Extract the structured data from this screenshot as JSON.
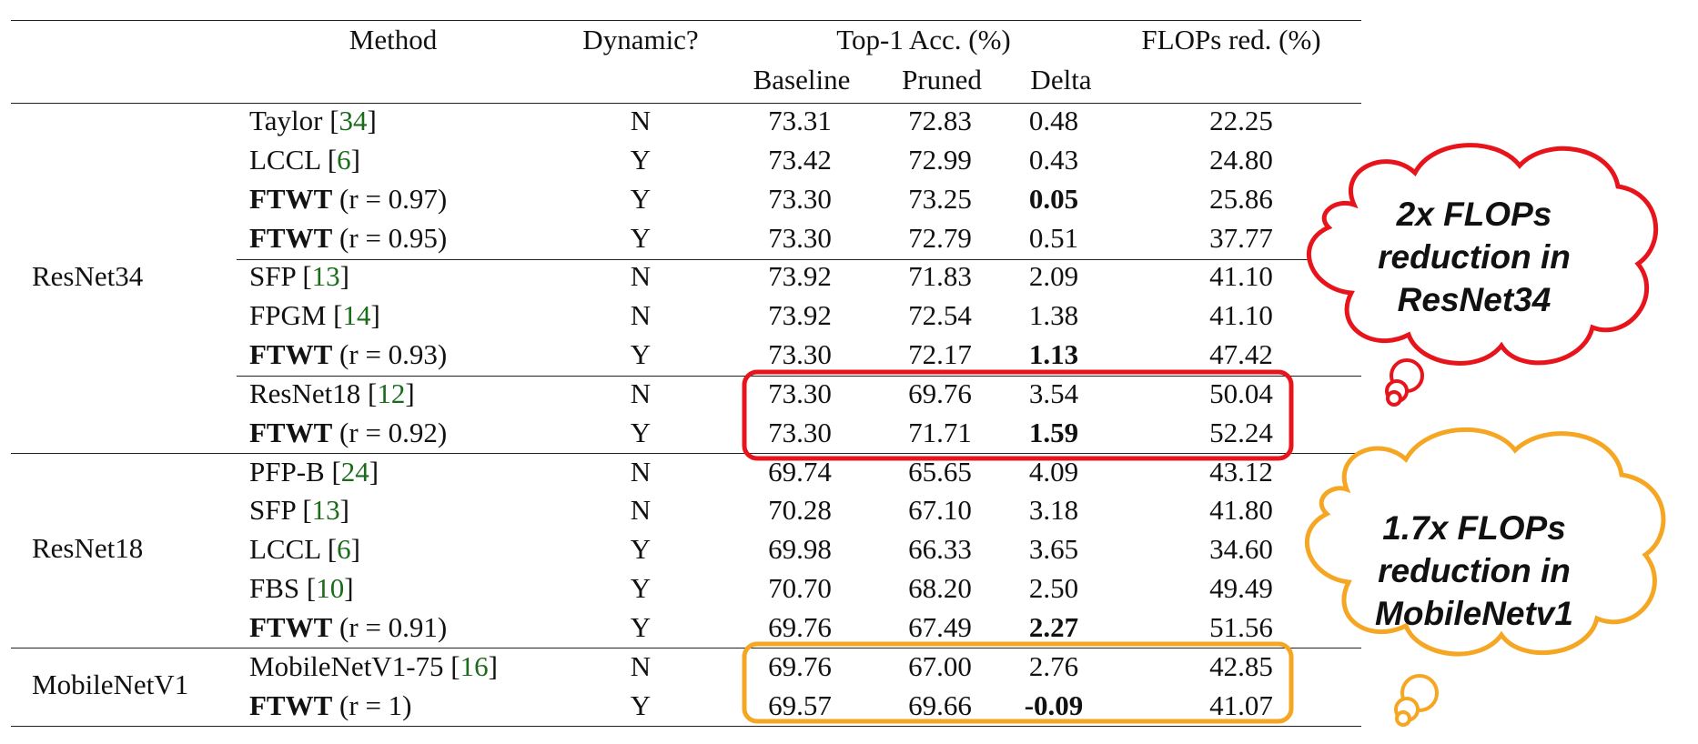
{
  "header": {
    "method": "Method",
    "dynamic": "Dynamic?",
    "top1": "Top-1 Acc. (%)",
    "flops": "FLOPs red. (%)",
    "baseline": "Baseline",
    "pruned": "Pruned",
    "delta": "Delta"
  },
  "groups": {
    "g1": "ResNet34",
    "g2": "ResNet18",
    "g3": "MobileNetV1"
  },
  "rows": [
    {
      "name": "Taylor [",
      "ref": "34",
      "suffix": "]",
      "dyn": "N",
      "base": "73.31",
      "pruned": "72.83",
      "delta": "0.48",
      "flops": "22.25"
    },
    {
      "name": "LCCL [",
      "ref": "6",
      "suffix": "]",
      "dyn": "Y",
      "base": "73.42",
      "pruned": "72.99",
      "delta": "0.43",
      "flops": "24.80"
    },
    {
      "name": "FTWT",
      "suffix": " (r = 0.97)",
      "dyn": "Y",
      "base": "73.30",
      "pruned": "73.25",
      "delta": "0.05",
      "flops": "25.86"
    },
    {
      "name": "FTWT",
      "suffix": " (r = 0.95)",
      "dyn": "Y",
      "base": "73.30",
      "pruned": "72.79",
      "delta": "0.51",
      "flops": "37.77"
    },
    {
      "name": "SFP [",
      "ref": "13",
      "suffix": "]",
      "dyn": "N",
      "base": "73.92",
      "pruned": "71.83",
      "delta": "2.09",
      "flops": "41.10"
    },
    {
      "name": "FPGM [",
      "ref": "14",
      "suffix": "]",
      "dyn": "N",
      "base": "73.92",
      "pruned": "72.54",
      "delta": "1.38",
      "flops": "41.10"
    },
    {
      "name": "FTWT",
      "suffix": " (r = 0.93)",
      "dyn": "Y",
      "base": "73.30",
      "pruned": "72.17",
      "delta": "1.13",
      "flops": "47.42"
    },
    {
      "name": "ResNet18 [",
      "ref": "12",
      "suffix": "]",
      "dyn": "N",
      "base": "73.30",
      "pruned": "69.76",
      "delta": "3.54",
      "flops": "50.04"
    },
    {
      "name": "FTWT",
      "suffix": " (r = 0.92)",
      "dyn": "Y",
      "base": "73.30",
      "pruned": "71.71",
      "delta": "1.59",
      "flops": "52.24"
    },
    {
      "name": "PFP-B [",
      "ref": "24",
      "suffix": "]",
      "dyn": "N",
      "base": "69.74",
      "pruned": "65.65",
      "delta": "4.09",
      "flops": "43.12"
    },
    {
      "name": "SFP [",
      "ref": "13",
      "suffix": "]",
      "dyn": "N",
      "base": "70.28",
      "pruned": "67.10",
      "delta": "3.18",
      "flops": "41.80"
    },
    {
      "name": "LCCL [",
      "ref": "6",
      "suffix": "]",
      "dyn": "Y",
      "base": "69.98",
      "pruned": "66.33",
      "delta": "3.65",
      "flops": "34.60"
    },
    {
      "name": "FBS [",
      "ref": "10",
      "suffix": "]",
      "dyn": "Y",
      "base": "70.70",
      "pruned": "68.20",
      "delta": "2.50",
      "flops": "49.49"
    },
    {
      "name": "FTWT",
      "suffix": " (r = 0.91)",
      "dyn": "Y",
      "base": "69.76",
      "pruned": "67.49",
      "delta": "2.27",
      "flops": "51.56"
    },
    {
      "name": "MobileNetV1-75 [",
      "ref": "16",
      "suffix": "]",
      "dyn": "N",
      "base": "69.76",
      "pruned": "67.00",
      "delta": "2.76",
      "flops": "42.85"
    },
    {
      "name": "FTWT",
      "suffix": " (r = 1)",
      "dyn": "Y",
      "base": "69.57",
      "pruned": "69.66",
      "delta": "-0.09",
      "flops": "41.07"
    }
  ],
  "clouds": {
    "red": {
      "line1": "2x FLOPs",
      "line2": "reduction in",
      "line3": "ResNet34",
      "color": "#e8141c"
    },
    "orange": {
      "line1": "1.7x FLOPs",
      "line2": "reduction in",
      "line3": "MobileNetv1",
      "color": "#f5a623"
    }
  }
}
